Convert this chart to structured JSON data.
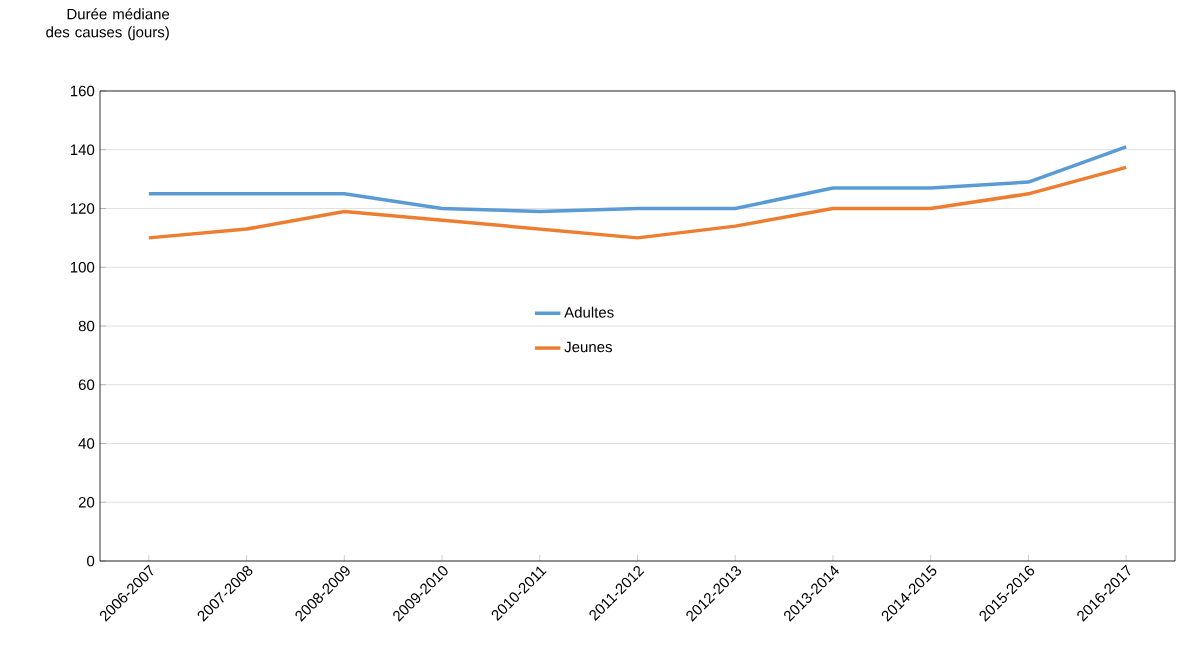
{
  "chart_data": {
    "type": "line",
    "ylabel": "Durée médiane des causes (jours)",
    "categories": [
      "2006-2007",
      "2007-2008",
      "2008-2009",
      "2009-2010",
      "2010-2011",
      "2011-2012",
      "2012-2013",
      "2013-2014",
      "2014-2015",
      "2015-2016",
      "2016-2017"
    ],
    "series": [
      {
        "name": "Adultes",
        "color": "#5b9bd5",
        "values": [
          125,
          125,
          125,
          120,
          119,
          120,
          120,
          127,
          127,
          129,
          141
        ]
      },
      {
        "name": "Jeunes",
        "color": "#ed7d31",
        "values": [
          110,
          113,
          119,
          116,
          113,
          110,
          114,
          120,
          120,
          125,
          134
        ]
      }
    ],
    "ylim": [
      0,
      160
    ],
    "yticks": [
      0,
      20,
      40,
      60,
      80,
      100,
      120,
      140,
      160
    ],
    "grid": "y",
    "legend": "center",
    "marker": "none",
    "line_style": "solid"
  }
}
